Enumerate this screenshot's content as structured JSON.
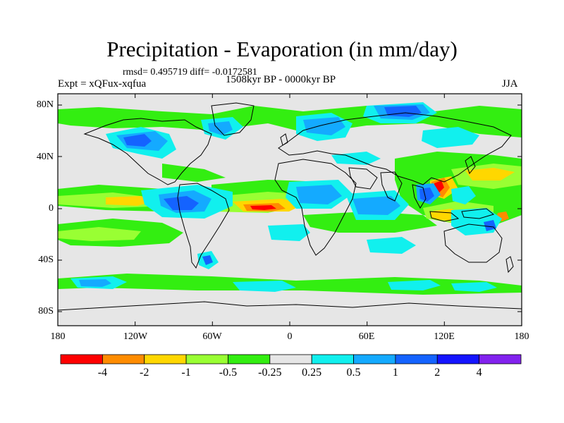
{
  "title": "Precipitation - Evaporation (in mm/day)",
  "stats": "rmsd= 0.495719 diff= -0.0172581",
  "experiment": "Expt = xQFux-xqfua",
  "period": "1508kyr BP - 0000kyr BP",
  "season": "JJA",
  "axes": {
    "lat_labels": [
      "80N",
      "40N",
      "0",
      "40S",
      "80S"
    ],
    "lon_labels": [
      "180",
      "120W",
      "60W",
      "0",
      "60E",
      "120E",
      "180"
    ]
  },
  "colorbar": {
    "colors": [
      "#ff0000",
      "#ff8c00",
      "#ffd700",
      "#99ff33",
      "#33ee11",
      "#e6e6e6",
      "#11f0ee",
      "#14aaff",
      "#1463ff",
      "#1414ff",
      "#8222ee"
    ],
    "labels": [
      "-4",
      "-2",
      "-1",
      "-0.5",
      "-0.25",
      "0.25",
      "0.5",
      "1",
      "2",
      "4"
    ]
  },
  "map": {
    "background_color": "#e6e6e6",
    "palette": {
      "red": "#ff0000",
      "orange": "#ff8c00",
      "yellow": "#ffd700",
      "lime": "#99ff33",
      "green": "#33ee11",
      "cyan": "#11f0ee",
      "lightblue": "#14aaff",
      "blue": "#1463ff",
      "darkblue": "#1414ff"
    }
  }
}
